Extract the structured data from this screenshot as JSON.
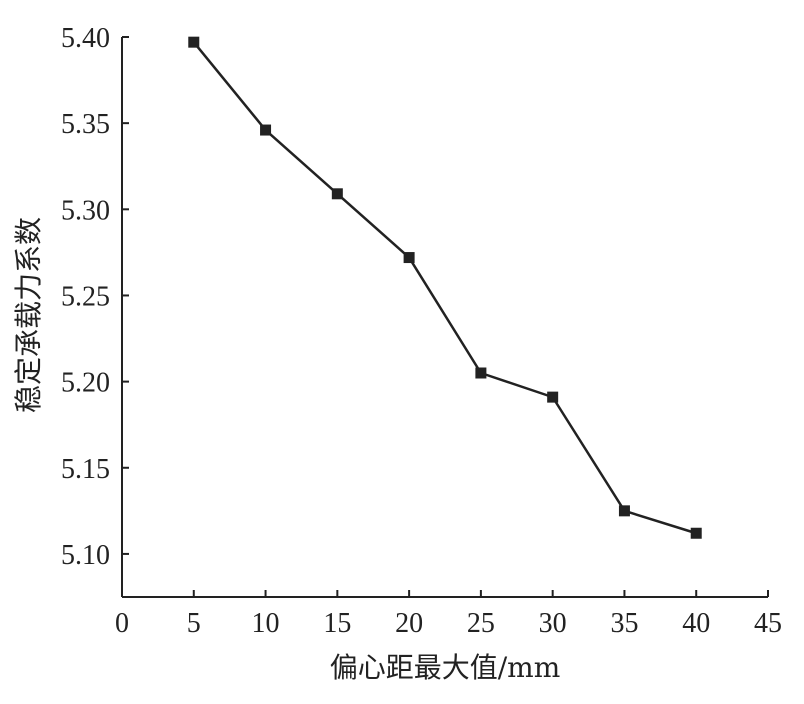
{
  "chart_data": {
    "type": "line",
    "title": "",
    "xlabel": "偏心距最大值/mm",
    "ylabel": "稳定承载力系数",
    "xlim": [
      0,
      45
    ],
    "ylim": [
      5.075,
      5.4
    ],
    "xticks": [
      0,
      5,
      10,
      15,
      20,
      25,
      30,
      35,
      40,
      45
    ],
    "yticks": [
      5.1,
      5.15,
      5.2,
      5.25,
      5.3,
      5.35,
      5.4
    ],
    "ytick_labels": [
      "5.10",
      "5.15",
      "5.20",
      "5.25",
      "5.30",
      "5.35",
      "5.40"
    ],
    "grid": false,
    "legend": "none",
    "marker": "square",
    "line_color": "#222222",
    "series": [
      {
        "x": [
          5,
          10,
          15,
          20,
          25,
          30,
          35,
          40
        ],
        "y": [
          5.397,
          5.346,
          5.309,
          5.272,
          5.205,
          5.191,
          5.125,
          5.112
        ]
      }
    ]
  }
}
